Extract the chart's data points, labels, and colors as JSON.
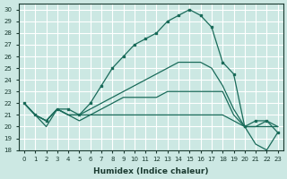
{
  "xlabel": "Humidex (Indice chaleur)",
  "bg_color": "#cce8e3",
  "grid_color": "#b0d8d0",
  "line_color": "#1a6b5a",
  "xlim": [
    -0.5,
    23.5
  ],
  "ylim": [
    18,
    30.5
  ],
  "yticks": [
    18,
    19,
    20,
    21,
    22,
    23,
    24,
    25,
    26,
    27,
    28,
    29,
    30
  ],
  "xticks": [
    0,
    1,
    2,
    3,
    4,
    5,
    6,
    7,
    8,
    9,
    10,
    11,
    12,
    13,
    14,
    15,
    16,
    17,
    18,
    19,
    20,
    21,
    22,
    23
  ],
  "series1": [
    22.0,
    21.0,
    20.5,
    21.5,
    21.5,
    21.0,
    22.0,
    23.5,
    25.0,
    26.0,
    27.0,
    27.5,
    28.0,
    29.0,
    29.5,
    30.0,
    29.5,
    28.5,
    25.5,
    24.5,
    20.0,
    20.5,
    20.5,
    19.5
  ],
  "series2": [
    22.0,
    21.0,
    20.5,
    21.5,
    21.0,
    21.0,
    21.5,
    22.0,
    22.5,
    23.0,
    23.5,
    24.0,
    24.5,
    25.0,
    25.5,
    25.5,
    25.5,
    25.0,
    23.5,
    21.5,
    20.0,
    20.0,
    20.5,
    20.0
  ],
  "series3": [
    22.0,
    21.0,
    20.5,
    21.5,
    21.0,
    21.0,
    21.0,
    21.5,
    22.0,
    22.5,
    22.5,
    22.5,
    22.5,
    23.0,
    23.0,
    23.0,
    23.0,
    23.0,
    23.0,
    21.0,
    20.0,
    20.0,
    20.0,
    20.0
  ],
  "series4": [
    22.0,
    21.0,
    20.0,
    21.5,
    21.0,
    20.5,
    21.0,
    21.0,
    21.0,
    21.0,
    21.0,
    21.0,
    21.0,
    21.0,
    21.0,
    21.0,
    21.0,
    21.0,
    21.0,
    20.5,
    20.0,
    18.5,
    18.0,
    19.5
  ]
}
